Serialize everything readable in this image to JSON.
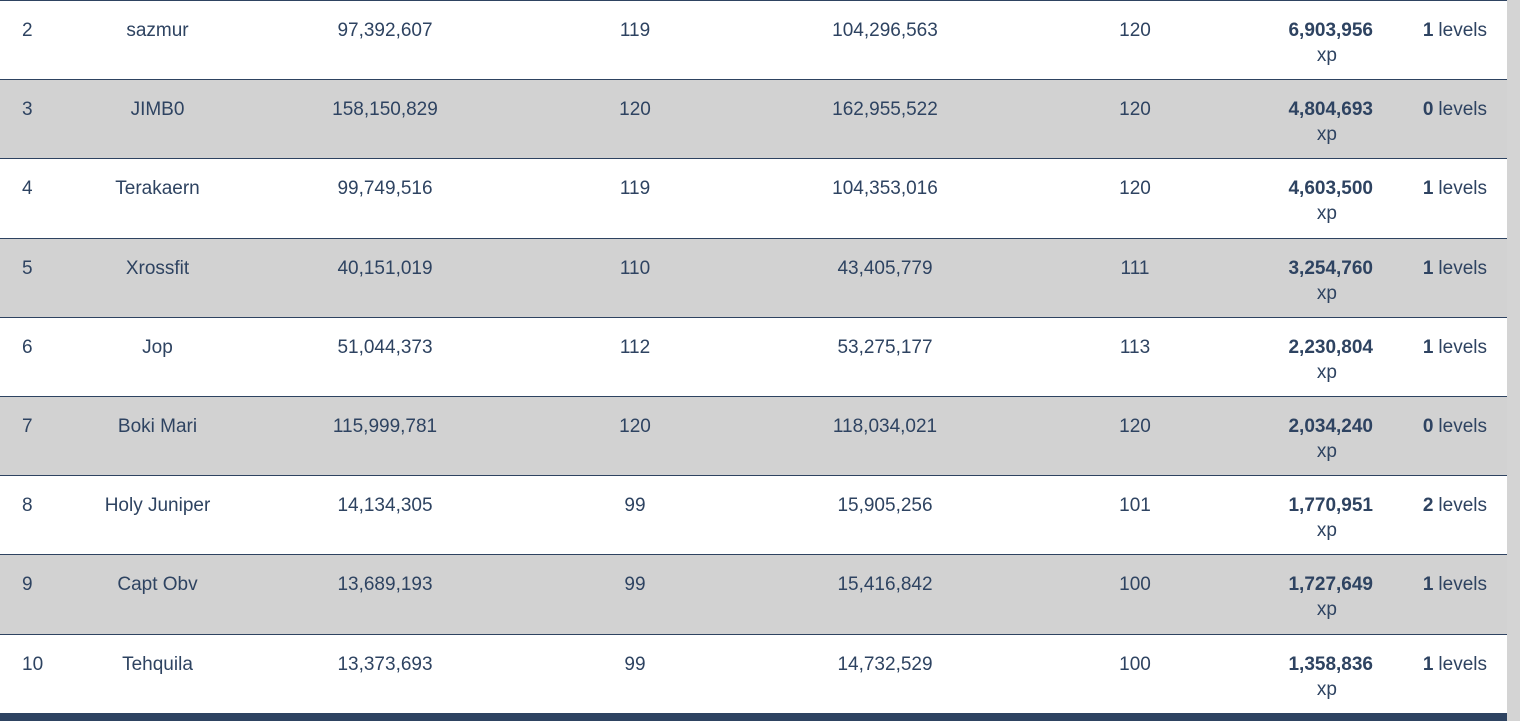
{
  "colors": {
    "text_navy": "#2e4361",
    "row_stripe": "#d2d2d2",
    "row_white": "#ffffff",
    "border": "#2e4361",
    "page_background": "#d4d4d4"
  },
  "table": {
    "units": {
      "xp": "xp",
      "levels": "levels"
    },
    "rows": [
      {
        "rank": "2",
        "name": "sazmur",
        "start_xp": "97,392,607",
        "start_level": "119",
        "end_xp": "104,296,563",
        "end_level": "120",
        "gained_xp": "6,903,956",
        "gained_levels": "1"
      },
      {
        "rank": "3",
        "name": "JIMB0",
        "start_xp": "158,150,829",
        "start_level": "120",
        "end_xp": "162,955,522",
        "end_level": "120",
        "gained_xp": "4,804,693",
        "gained_levels": "0"
      },
      {
        "rank": "4",
        "name": "Terakaern",
        "start_xp": "99,749,516",
        "start_level": "119",
        "end_xp": "104,353,016",
        "end_level": "120",
        "gained_xp": "4,603,500",
        "gained_levels": "1"
      },
      {
        "rank": "5",
        "name": "Xrossfit",
        "start_xp": "40,151,019",
        "start_level": "110",
        "end_xp": "43,405,779",
        "end_level": "111",
        "gained_xp": "3,254,760",
        "gained_levels": "1"
      },
      {
        "rank": "6",
        "name": "Jop",
        "start_xp": "51,044,373",
        "start_level": "112",
        "end_xp": "53,275,177",
        "end_level": "113",
        "gained_xp": "2,230,804",
        "gained_levels": "1"
      },
      {
        "rank": "7",
        "name": "Boki Mari",
        "start_xp": "115,999,781",
        "start_level": "120",
        "end_xp": "118,034,021",
        "end_level": "120",
        "gained_xp": "2,034,240",
        "gained_levels": "0"
      },
      {
        "rank": "8",
        "name": "Holy Juniper",
        "start_xp": "14,134,305",
        "start_level": "99",
        "end_xp": "15,905,256",
        "end_level": "101",
        "gained_xp": "1,770,951",
        "gained_levels": "2"
      },
      {
        "rank": "9",
        "name": "Capt Obv",
        "start_xp": "13,689,193",
        "start_level": "99",
        "end_xp": "15,416,842",
        "end_level": "100",
        "gained_xp": "1,727,649",
        "gained_levels": "1"
      },
      {
        "rank": "10",
        "name": "Tehquila",
        "start_xp": "13,373,693",
        "start_level": "99",
        "end_xp": "14,732,529",
        "end_level": "100",
        "gained_xp": "1,358,836",
        "gained_levels": "1"
      }
    ]
  }
}
